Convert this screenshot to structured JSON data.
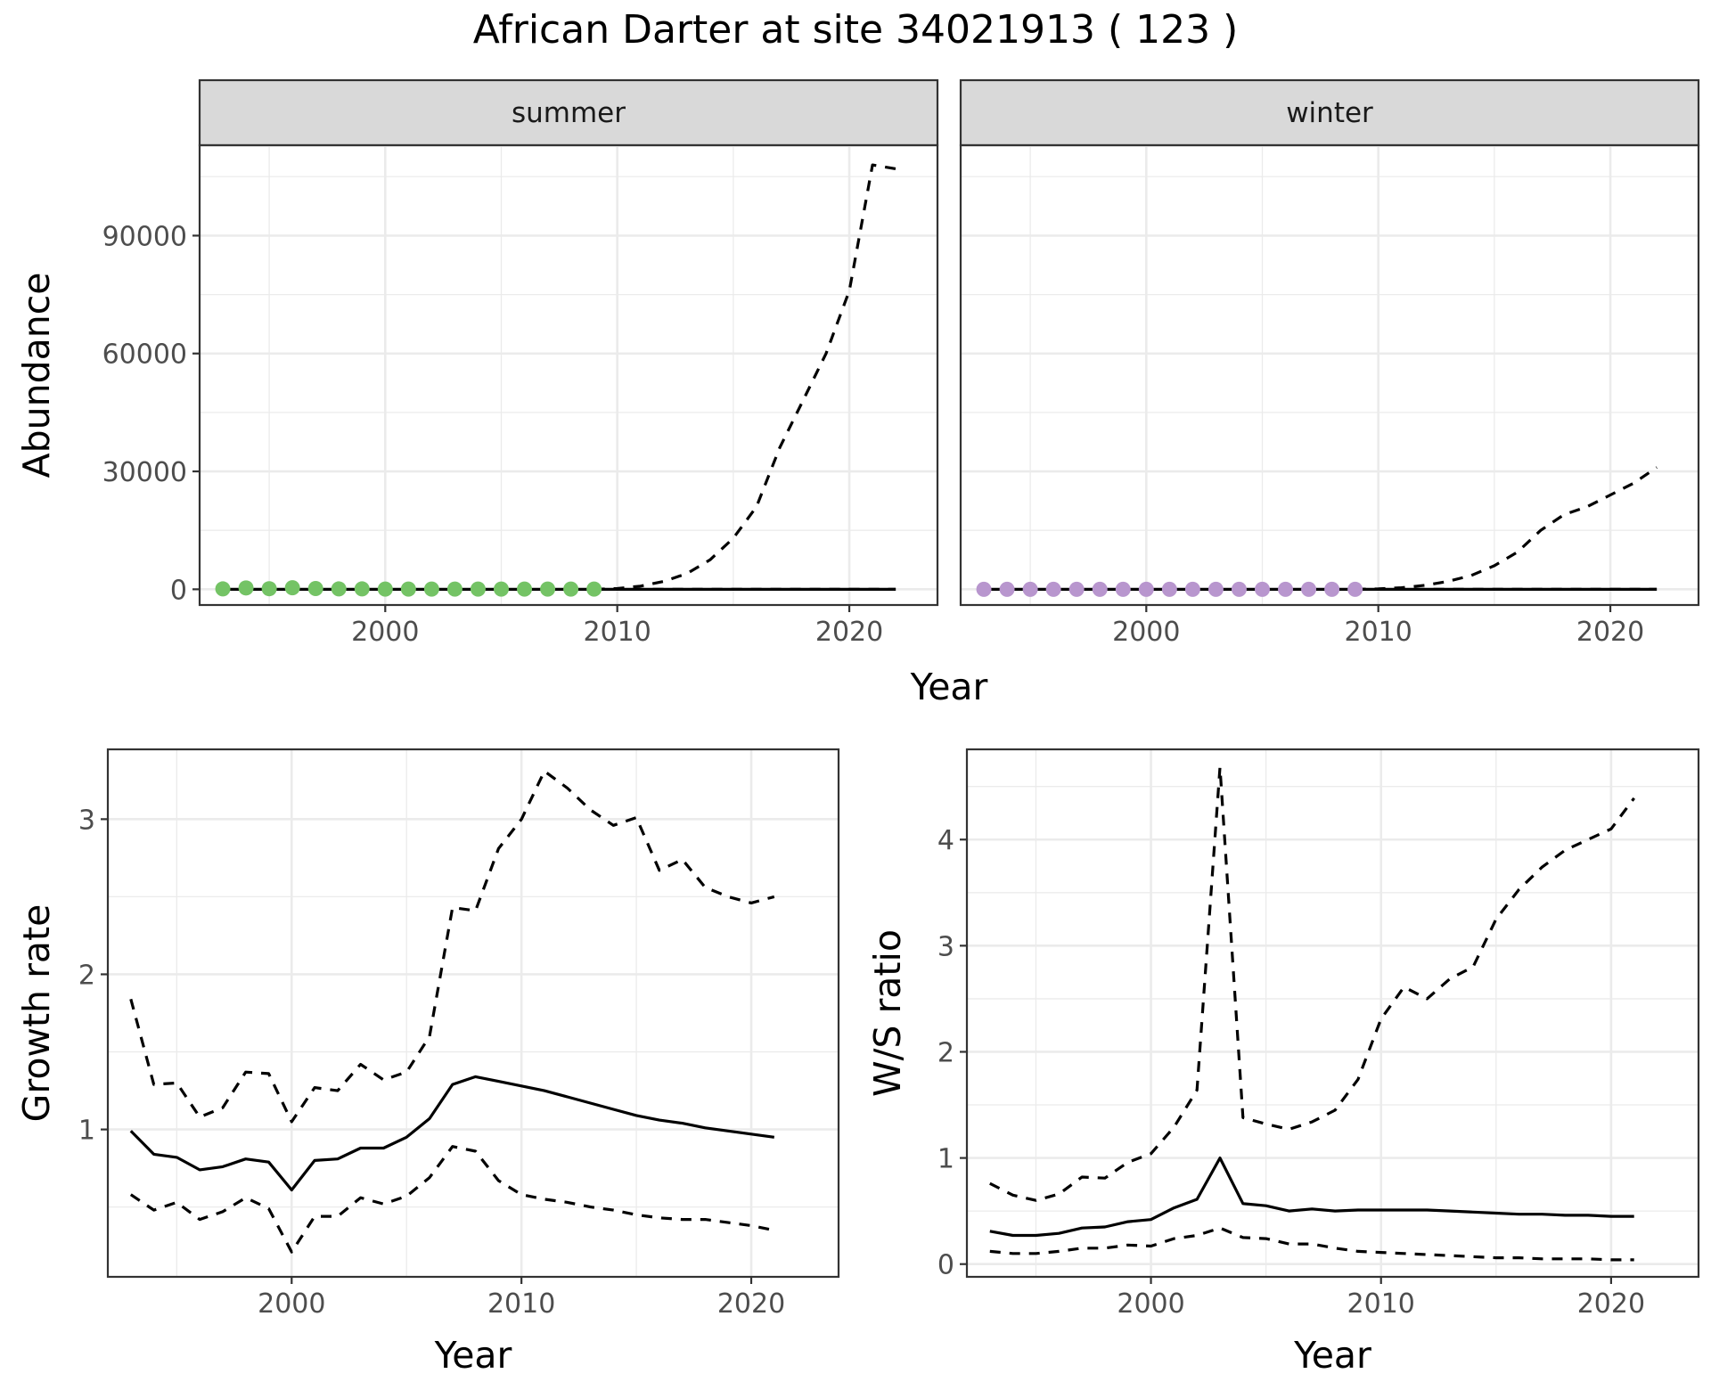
{
  "chart_data": {
    "title": "African Darter at site 34021913 ( 123 )",
    "abundance": {
      "type": "line",
      "ylabel": "Abundance",
      "xlabel": "Year",
      "xlim": [
        1992,
        2023.8
      ],
      "ylim": [
        -4000,
        113000
      ],
      "x_ticks": [
        2000,
        2010,
        2020
      ],
      "y_ticks": [
        0,
        30000,
        60000,
        90000
      ],
      "x_tick_labels": [
        "2000",
        "2010",
        "2020"
      ],
      "y_tick_labels": [
        "0",
        "30000",
        "60000",
        "90000"
      ],
      "facets": [
        {
          "name": "summer",
          "point_color": "#74c365",
          "points": {
            "x": [
              1993,
              1994,
              1995,
              1996,
              1997,
              1998,
              1999,
              2000,
              2001,
              2002,
              2003,
              2004,
              2005,
              2006,
              2007,
              2008,
              2009
            ],
            "y": [
              100,
              350,
              150,
              400,
              200,
              100,
              100,
              50,
              50,
              50,
              50,
              50,
              50,
              50,
              50,
              50,
              50
            ]
          },
          "estimate": {
            "x": [
              1993,
              1995,
              2000,
              2005,
              2009,
              2010,
              2012,
              2014,
              2016,
              2018,
              2020,
              2022
            ],
            "y": [
              0,
              0,
              0,
              0,
              0,
              0,
              0,
              0,
              0,
              0,
              0,
              0
            ]
          },
          "upper": {
            "x": [
              2009,
              2010,
              2011,
              2012,
              2013,
              2014,
              2015,
              2016,
              2017,
              2018,
              2019,
              2020,
              2021,
              2022
            ],
            "y": [
              0,
              200,
              800,
              2000,
              4000,
              7500,
              13000,
              21000,
              36000,
              48000,
              60000,
              76000,
              108000,
              107000
            ]
          },
          "lower": {
            "x": [
              2009,
              2022
            ],
            "y": [
              0,
              0
            ]
          }
        },
        {
          "name": "winter",
          "point_color": "#b896ce",
          "points": {
            "x": [
              1993,
              1994,
              1995,
              1996,
              1997,
              1998,
              1999,
              2000,
              2001,
              2002,
              2003,
              2004,
              2005,
              2006,
              2007,
              2008,
              2009
            ],
            "y": [
              0,
              0,
              0,
              0,
              0,
              0,
              0,
              0,
              0,
              0,
              0,
              0,
              0,
              0,
              0,
              0,
              0
            ]
          },
          "estimate": {
            "x": [
              1993,
              2000,
              2009,
              2015,
              2022
            ],
            "y": [
              0,
              0,
              0,
              0,
              0
            ]
          },
          "upper": {
            "x": [
              2009,
              2010,
              2011,
              2012,
              2013,
              2014,
              2015,
              2016,
              2017,
              2018,
              2019,
              2020,
              2021,
              2022
            ],
            "y": [
              0,
              100,
              400,
              1000,
              2000,
              3500,
              6000,
              9500,
              15000,
              19000,
              21000,
              24000,
              27000,
              31000
            ]
          },
          "lower": {
            "x": [
              2009,
              2022
            ],
            "y": [
              0,
              0
            ]
          }
        }
      ]
    },
    "growth_rate": {
      "type": "line",
      "xlabel": "Year",
      "ylabel": "Growth rate",
      "xlim": [
        1992,
        2023.8
      ],
      "ylim": [
        0.05,
        3.45
      ],
      "x_ticks": [
        2000,
        2010,
        2020
      ],
      "y_ticks": [
        1,
        2,
        3
      ],
      "x_tick_labels": [
        "2000",
        "2010",
        "2020"
      ],
      "y_tick_labels": [
        "1",
        "2",
        "3"
      ],
      "x": [
        1993,
        1994,
        1995,
        1996,
        1997,
        1998,
        1999,
        2000,
        2001,
        2002,
        2003,
        2004,
        2005,
        2006,
        2007,
        2008,
        2009,
        2010,
        2011,
        2012,
        2013,
        2014,
        2015,
        2016,
        2017,
        2018,
        2019,
        2020,
        2021
      ],
      "estimate": [
        0.99,
        0.84,
        0.82,
        0.74,
        0.76,
        0.81,
        0.79,
        0.61,
        0.8,
        0.81,
        0.88,
        0.88,
        0.95,
        1.07,
        1.29,
        1.34,
        1.31,
        1.28,
        1.25,
        1.21,
        1.17,
        1.13,
        1.09,
        1.06,
        1.04,
        1.01,
        0.99,
        0.97,
        0.95
      ],
      "upper": [
        1.84,
        1.29,
        1.3,
        1.08,
        1.14,
        1.37,
        1.36,
        1.05,
        1.27,
        1.25,
        1.42,
        1.32,
        1.37,
        1.6,
        2.43,
        2.41,
        2.81,
        3.0,
        3.31,
        3.2,
        3.06,
        2.96,
        3.01,
        2.67,
        2.74,
        2.56,
        2.5,
        2.46,
        2.5
      ],
      "lower": [
        0.58,
        0.48,
        0.53,
        0.42,
        0.47,
        0.56,
        0.49,
        0.21,
        0.44,
        0.44,
        0.56,
        0.52,
        0.57,
        0.69,
        0.89,
        0.86,
        0.67,
        0.58,
        0.55,
        0.53,
        0.5,
        0.48,
        0.45,
        0.43,
        0.42,
        0.42,
        0.4,
        0.38,
        0.35
      ]
    },
    "ws_ratio": {
      "type": "line",
      "xlabel": "Year",
      "ylabel": "W/S ratio",
      "xlim": [
        1992,
        2023.8
      ],
      "ylim": [
        -0.12,
        4.85
      ],
      "x_ticks": [
        2000,
        2010,
        2020
      ],
      "y_ticks": [
        0,
        1,
        2,
        3,
        4
      ],
      "x_tick_labels": [
        "2000",
        "2010",
        "2020"
      ],
      "y_tick_labels": [
        "0",
        "1",
        "2",
        "3",
        "4"
      ],
      "x": [
        1993,
        1994,
        1995,
        1996,
        1997,
        1998,
        1999,
        2000,
        2001,
        2002,
        2003,
        2004,
        2005,
        2006,
        2007,
        2008,
        2009,
        2010,
        2011,
        2012,
        2013,
        2014,
        2015,
        2016,
        2017,
        2018,
        2019,
        2020,
        2021
      ],
      "estimate": [
        0.31,
        0.27,
        0.27,
        0.29,
        0.34,
        0.35,
        0.4,
        0.42,
        0.53,
        0.61,
        1.0,
        0.57,
        0.55,
        0.5,
        0.52,
        0.5,
        0.51,
        0.51,
        0.51,
        0.51,
        0.5,
        0.49,
        0.48,
        0.47,
        0.47,
        0.46,
        0.46,
        0.45,
        0.45
      ],
      "upper": [
        0.76,
        0.65,
        0.6,
        0.66,
        0.82,
        0.81,
        0.96,
        1.04,
        1.29,
        1.64,
        4.68,
        1.38,
        1.32,
        1.27,
        1.34,
        1.45,
        1.74,
        2.31,
        2.61,
        2.5,
        2.69,
        2.8,
        3.25,
        3.53,
        3.74,
        3.9,
        4.0,
        4.1,
        4.39
      ],
      "lower": [
        0.12,
        0.1,
        0.1,
        0.12,
        0.15,
        0.15,
        0.18,
        0.17,
        0.24,
        0.27,
        0.34,
        0.25,
        0.24,
        0.19,
        0.19,
        0.15,
        0.12,
        0.11,
        0.1,
        0.09,
        0.08,
        0.07,
        0.06,
        0.06,
        0.05,
        0.05,
        0.05,
        0.04,
        0.04
      ]
    }
  }
}
